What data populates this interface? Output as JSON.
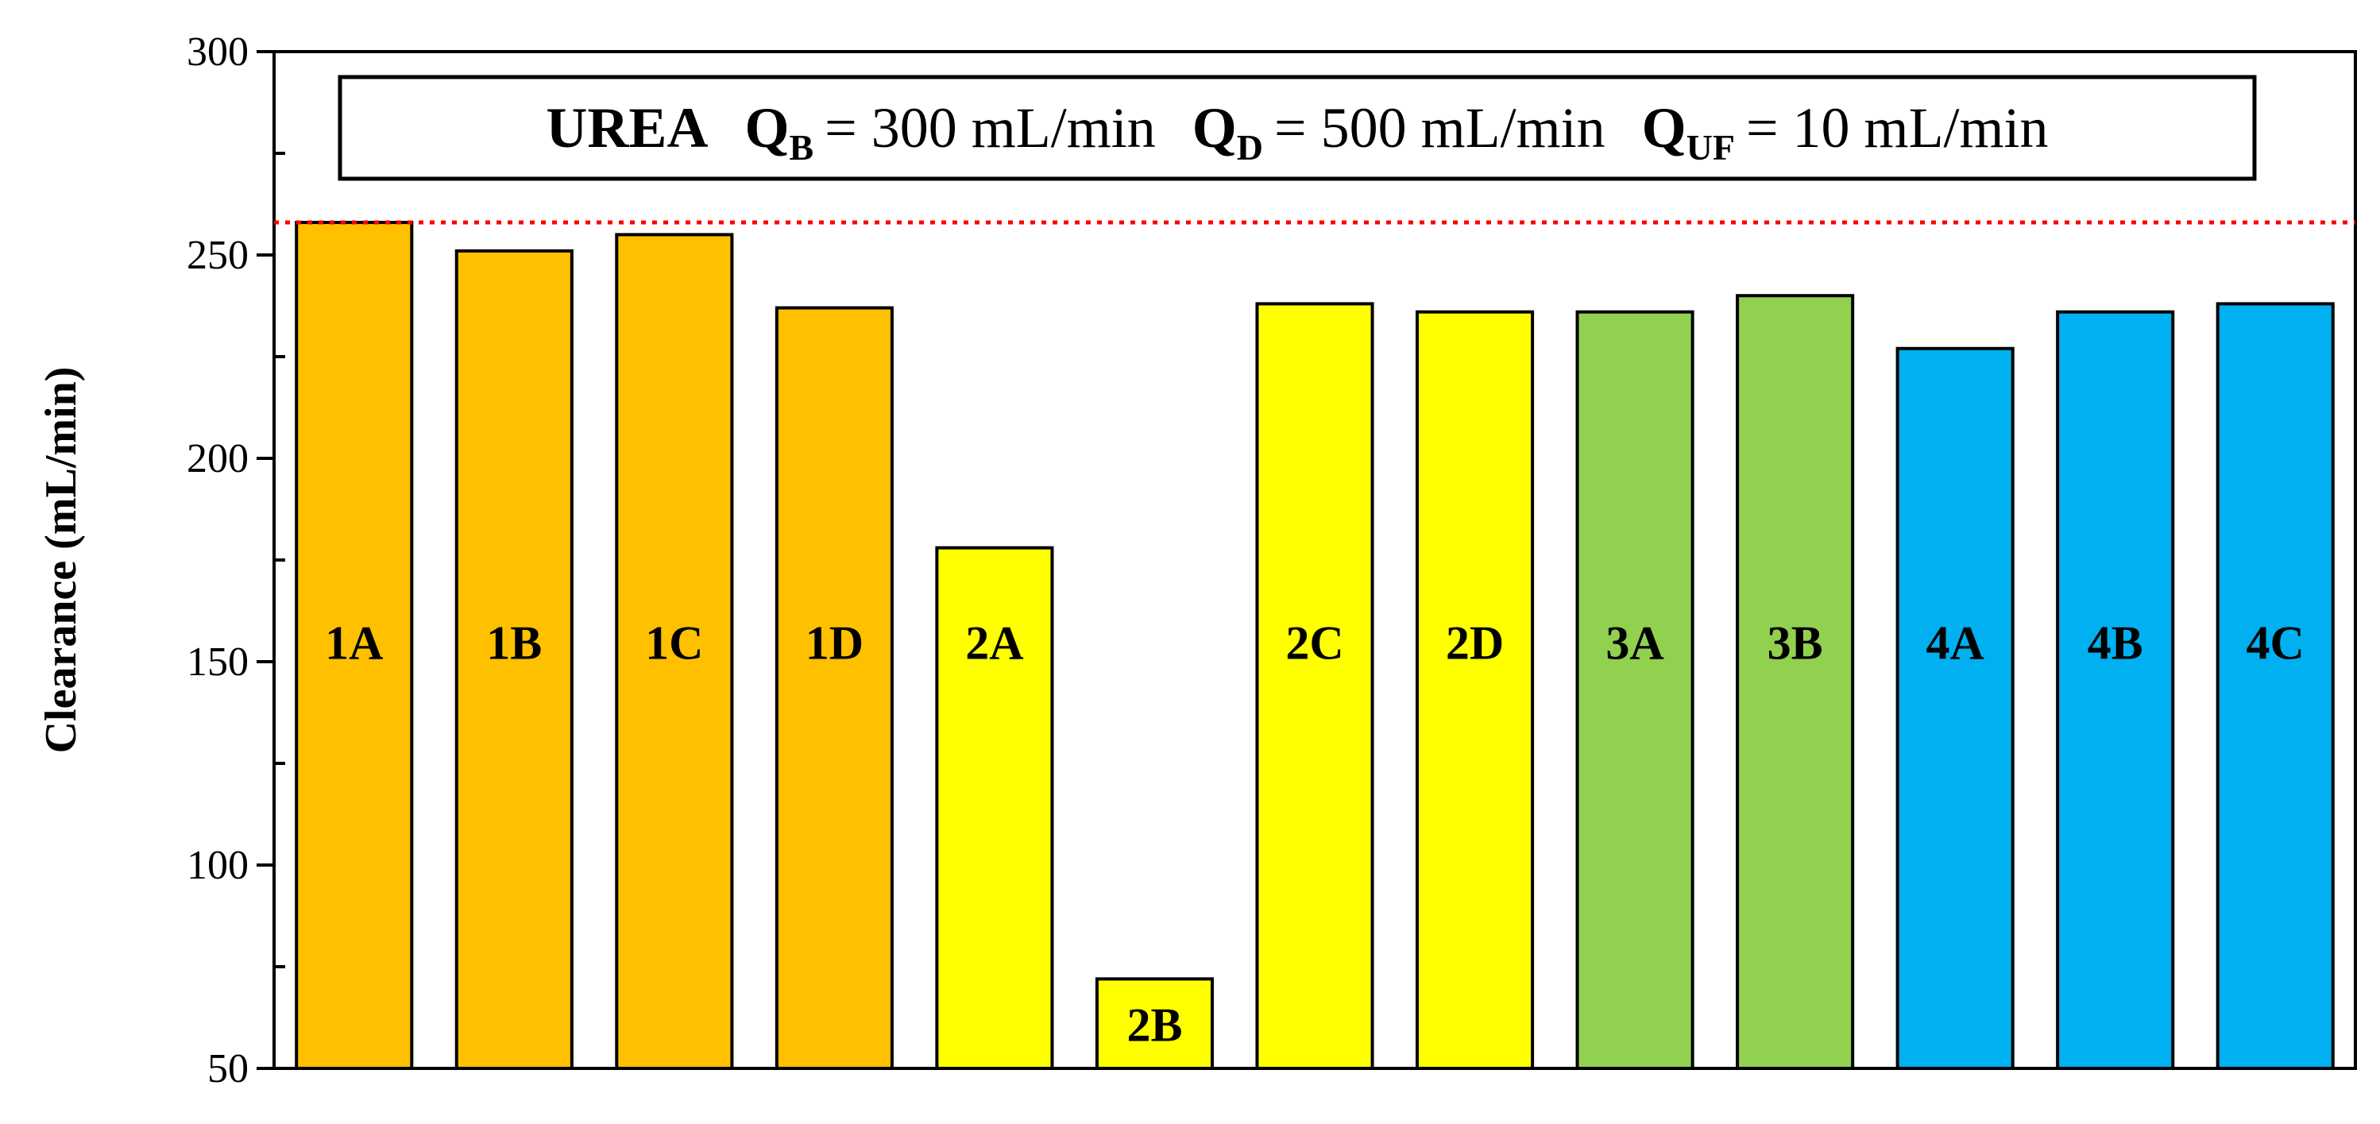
{
  "chart_data": {
    "type": "bar",
    "ylabel": "Clearance (mL/min)",
    "ylim": [
      50,
      300
    ],
    "yticks": [
      50,
      100,
      150,
      200,
      250,
      300
    ],
    "reference_line": {
      "y": 258,
      "color": "#ff0000",
      "style": "dotted"
    },
    "grid": false,
    "legend": {
      "position": "top-center",
      "solute": "UREA",
      "qb_symbol": "Q",
      "qb_sub": "B",
      "qb_value": "= 300 mL/min",
      "qd_symbol": "Q",
      "qd_sub": "D",
      "qd_value": "= 500 mL/min",
      "quf_symbol": "Q",
      "quf_sub": "UF",
      "quf_value": "= 10 mL/min"
    },
    "categories": [
      "1A",
      "1B",
      "1C",
      "1D",
      "2A",
      "2B",
      "2C",
      "2D",
      "3A",
      "3B",
      "4A",
      "4B",
      "4C"
    ],
    "values": [
      258,
      251,
      255,
      237,
      178,
      72,
      238,
      236,
      236,
      240,
      227,
      236,
      238
    ],
    "colors": [
      "#ffc000",
      "#ffc000",
      "#ffc000",
      "#ffc000",
      "#ffff00",
      "#ffff00",
      "#ffff00",
      "#ffff00",
      "#92d050",
      "#92d050",
      "#00b0f0",
      "#00b0f0",
      "#00b0f0"
    ]
  }
}
